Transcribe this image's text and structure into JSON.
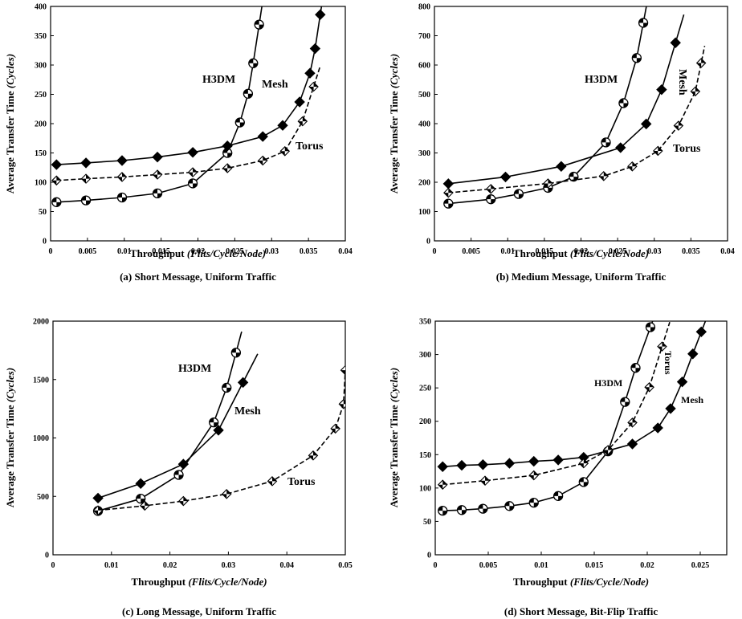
{
  "chart_data": [
    {
      "type": "line",
      "caption": "(a) Short Message, Uniform Traffic",
      "xlabel": "Throughput",
      "xlabel_units": "(Flits/Cycle/Node)",
      "ylabel": "Average Transfer Time",
      "ylabel_units": "(Cycles)",
      "xlim": [
        0,
        0.04
      ],
      "ylim": [
        0,
        400
      ],
      "xticks": [
        0,
        0.005,
        0.01,
        0.015,
        0.02,
        0.025,
        0.03,
        0.035,
        0.04
      ],
      "xtick_labels": [
        "0",
        "0.005",
        "0.01",
        "0.015",
        "0.02",
        "0.025",
        "0.03",
        "0.035",
        "0.04"
      ],
      "yticks": [
        0,
        50,
        100,
        150,
        200,
        250,
        300,
        350,
        400
      ],
      "ytick_labels": [
        "0",
        "50",
        "100",
        "150",
        "200",
        "250",
        "300",
        "350",
        "400"
      ],
      "series": [
        {
          "name": "H3DM",
          "marker": "circle",
          "dashed": false,
          "x": [
            0.0008,
            0.0048,
            0.0097,
            0.0145,
            0.0193,
            0.024,
            0.0257,
            0.0268,
            0.0275,
            0.0283
          ],
          "y": [
            66,
            69,
            74,
            81,
            98,
            150,
            202,
            251,
            303,
            369
          ]
        },
        {
          "name": "Mesh",
          "marker": "diamond",
          "dashed": false,
          "x": [
            0.0008,
            0.0048,
            0.0097,
            0.0145,
            0.0193,
            0.024,
            0.0288,
            0.0315,
            0.0338,
            0.0352,
            0.0359,
            0.0366
          ],
          "y": [
            130,
            133,
            137,
            143,
            151,
            162,
            178,
            197,
            237,
            286,
            328,
            386
          ]
        },
        {
          "name": "Torus",
          "marker": "diamond-half",
          "dashed": true,
          "x": [
            0.0008,
            0.0048,
            0.0097,
            0.0145,
            0.0193,
            0.024,
            0.0288,
            0.0318,
            0.0342,
            0.0357
          ],
          "y": [
            103,
            106,
            109,
            113,
            117,
            124,
            137,
            153,
            204,
            263
          ]
        }
      ]
    },
    {
      "type": "line",
      "caption": "(b) Medium Message, Uniform Traffic",
      "xlabel": "Throughput",
      "xlabel_units": "(Flits/Cycle/Node)",
      "ylabel": "Average Transfer Time",
      "ylabel_units": "(Cycles)",
      "xlim": [
        0,
        0.04
      ],
      "ylim": [
        0,
        800
      ],
      "xticks": [
        0,
        0.005,
        0.01,
        0.015,
        0.02,
        0.025,
        0.03,
        0.035,
        0.04
      ],
      "xtick_labels": [
        "0",
        "0.005",
        "0.01",
        "0.015",
        "0.02",
        "0.025",
        "0.03",
        "0.035",
        "0.04"
      ],
      "yticks": [
        0,
        100,
        200,
        300,
        400,
        500,
        600,
        700,
        800
      ],
      "ytick_labels": [
        "0",
        "100",
        "200",
        "300",
        "400",
        "500",
        "600",
        "700",
        "800"
      ],
      "series": [
        {
          "name": "H3DM",
          "marker": "circle",
          "dashed": false,
          "x": [
            0.0019,
            0.0077,
            0.0115,
            0.0155,
            0.019,
            0.0234,
            0.0258,
            0.0276,
            0.0285
          ],
          "y": [
            127,
            142,
            160,
            181,
            219,
            336,
            470,
            624,
            744
          ]
        },
        {
          "name": "Mesh",
          "marker": "diamond",
          "dashed": false,
          "x": [
            0.0019,
            0.0097,
            0.0173,
            0.0254,
            0.0289,
            0.031,
            0.0329
          ],
          "y": [
            195,
            218,
            254,
            318,
            399,
            516,
            676
          ]
        },
        {
          "name": "Torus",
          "marker": "diamond-half",
          "dashed": true,
          "x": [
            0.0019,
            0.0077,
            0.0155,
            0.0231,
            0.027,
            0.0305,
            0.0333,
            0.0356,
            0.0364
          ],
          "y": [
            164,
            177,
            196,
            221,
            254,
            307,
            393,
            510,
            607
          ]
        }
      ]
    },
    {
      "type": "line",
      "caption": "(c) Long Message, Uniform Traffic",
      "xlabel": "Throughput",
      "xlabel_units": "(Flits/Cycle/Node)",
      "ylabel": "Average Transfer Time",
      "ylabel_units": "(Cycles)",
      "xlim": [
        0,
        0.05
      ],
      "ylim": [
        0,
        2000
      ],
      "xticks": [
        0,
        0.01,
        0.02,
        0.03,
        0.04,
        0.05
      ],
      "xtick_labels": [
        "0",
        "0.01",
        "0.02",
        "0.03",
        "0.04",
        "0.05"
      ],
      "yticks": [
        0,
        500,
        1000,
        1500,
        2000
      ],
      "ytick_labels": [
        "0",
        "500",
        "1000",
        "1500",
        "2000"
      ],
      "series": [
        {
          "name": "H3DM",
          "marker": "circle",
          "dashed": false,
          "x": [
            0.0077,
            0.015,
            0.0215,
            0.0275,
            0.0297,
            0.0313
          ],
          "y": [
            375,
            480,
            684,
            1133,
            1430,
            1730
          ]
        },
        {
          "name": "Mesh",
          "marker": "diamond",
          "dashed": false,
          "x": [
            0.0077,
            0.015,
            0.0223,
            0.0283,
            0.0325
          ],
          "y": [
            485,
            610,
            776,
            1066,
            1475
          ]
        },
        {
          "name": "Torus",
          "marker": "diamond-half",
          "dashed": true,
          "x": [
            0.0077,
            0.0157,
            0.0223,
            0.0297,
            0.0375,
            0.0445,
            0.0483,
            0.0497,
            0.05
          ],
          "y": [
            380,
            420,
            460,
            520,
            630,
            850,
            1080,
            1290,
            1580
          ]
        }
      ]
    },
    {
      "type": "line",
      "caption": "(d) Short Message, Bit-Flip Traffic",
      "xlabel": "Throughput",
      "xlabel_units": "(Flits/Cycle/Node)",
      "ylabel": "Average Transfer Time",
      "ylabel_units": "(Cycles)",
      "xlim": [
        0,
        0.0275
      ],
      "ylim": [
        0,
        350
      ],
      "xticks": [
        0,
        0.005,
        0.01,
        0.015,
        0.02,
        0.025
      ],
      "xtick_labels": [
        "0",
        "0.005",
        "0.01",
        "0.015",
        "0.02",
        "0.025"
      ],
      "yticks": [
        0,
        50,
        100,
        150,
        200,
        250,
        300,
        350
      ],
      "ytick_labels": [
        "0",
        "50",
        "100",
        "150",
        "200",
        "250",
        "300",
        "350"
      ],
      "series": [
        {
          "name": "H3DM",
          "marker": "circle",
          "dashed": false,
          "x": [
            0.0007,
            0.0025,
            0.0045,
            0.007,
            0.0093,
            0.0116,
            0.014,
            0.0163,
            0.0179,
            0.0189,
            0.0203
          ],
          "y": [
            66,
            67,
            69,
            73,
            78,
            88,
            109,
            155,
            229,
            280,
            341
          ]
        },
        {
          "name": "Mesh",
          "marker": "diamond",
          "dashed": false,
          "x": [
            0.0007,
            0.0025,
            0.0045,
            0.007,
            0.0093,
            0.0116,
            0.014,
            0.0163,
            0.0186,
            0.021,
            0.0222,
            0.0233,
            0.0243,
            0.0251
          ],
          "y": [
            132,
            134,
            135,
            137,
            140,
            142,
            146,
            156,
            166,
            190,
            219,
            259,
            301,
            334
          ]
        },
        {
          "name": "Torus",
          "marker": "diamond-half",
          "dashed": true,
          "x": [
            0.0007,
            0.0047,
            0.0093,
            0.014,
            0.0163,
            0.0186,
            0.0202,
            0.0214
          ],
          "y": [
            105,
            111,
            119,
            137,
            157,
            198,
            251,
            312
          ]
        }
      ]
    }
  ]
}
